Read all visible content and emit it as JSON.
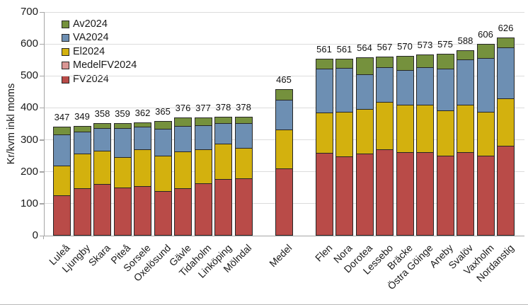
{
  "page": {
    "background": "#FFFFFF"
  },
  "chart_data": {
    "type": "bar",
    "stacked": true,
    "title": "",
    "xlabel": "",
    "ylabel": "Kr/kvm inkl moms",
    "ylim": [
      0,
      700
    ],
    "ytick_step": 100,
    "yticks": [
      0,
      100,
      200,
      300,
      400,
      500,
      600,
      700
    ],
    "grid": true,
    "legend_position": "top-left-inside",
    "legend": [
      "Av2024",
      "VA2024",
      "El2024",
      "MedelFV2024",
      "FV2024"
    ],
    "series_colors": {
      "Av2024": "#75913D",
      "VA2024": "#6D8FB3",
      "El2024": "#D3B10E",
      "MedelFV2024": "#D99694",
      "FV2024": "#B94B48"
    },
    "segment_border_color": "#262626",
    "stack_order_bottom_to_top": [
      "FV2024",
      "El2024",
      "VA2024",
      "Av2024"
    ],
    "bars": [
      {
        "label": "Luleå",
        "total": 347,
        "segments": [
          {
            "series": "FV2024",
            "value": 127
          },
          {
            "series": "El2024",
            "value": 95
          },
          {
            "series": "VA2024",
            "value": 100
          },
          {
            "series": "Av2024",
            "value": 25
          }
        ]
      },
      {
        "label": "Ljungby",
        "total": 349,
        "segments": [
          {
            "series": "FV2024",
            "value": 148
          },
          {
            "series": "El2024",
            "value": 112
          },
          {
            "series": "VA2024",
            "value": 71
          },
          {
            "series": "Av2024",
            "value": 18
          }
        ]
      },
      {
        "label": "Skara",
        "total": 358,
        "segments": [
          {
            "series": "FV2024",
            "value": 162
          },
          {
            "series": "El2024",
            "value": 106
          },
          {
            "series": "VA2024",
            "value": 74
          },
          {
            "series": "Av2024",
            "value": 16
          }
        ]
      },
      {
        "label": "Piteå",
        "total": 359,
        "segments": [
          {
            "series": "FV2024",
            "value": 151
          },
          {
            "series": "El2024",
            "value": 97
          },
          {
            "series": "VA2024",
            "value": 93
          },
          {
            "series": "Av2024",
            "value": 18
          }
        ]
      },
      {
        "label": "Sorsele",
        "total": 362,
        "segments": [
          {
            "series": "FV2024",
            "value": 155
          },
          {
            "series": "El2024",
            "value": 117
          },
          {
            "series": "VA2024",
            "value": 73
          },
          {
            "series": "Av2024",
            "value": 17
          }
        ]
      },
      {
        "label": "Oxelösund",
        "total": 365,
        "segments": [
          {
            "series": "FV2024",
            "value": 140
          },
          {
            "series": "El2024",
            "value": 112
          },
          {
            "series": "VA2024",
            "value": 87
          },
          {
            "series": "Av2024",
            "value": 26
          }
        ]
      },
      {
        "label": "Gävle",
        "total": 376,
        "segments": [
          {
            "series": "FV2024",
            "value": 148
          },
          {
            "series": "El2024",
            "value": 118
          },
          {
            "series": "VA2024",
            "value": 82
          },
          {
            "series": "Av2024",
            "value": 28
          }
        ]
      },
      {
        "label": "Tidaholm",
        "total": 377,
        "segments": [
          {
            "series": "FV2024",
            "value": 164
          },
          {
            "series": "El2024",
            "value": 108
          },
          {
            "series": "VA2024",
            "value": 78
          },
          {
            "series": "Av2024",
            "value": 27
          }
        ]
      },
      {
        "label": "Linköping",
        "total": 378,
        "segments": [
          {
            "series": "FV2024",
            "value": 177
          },
          {
            "series": "El2024",
            "value": 113
          },
          {
            "series": "VA2024",
            "value": 66
          },
          {
            "series": "Av2024",
            "value": 22
          }
        ]
      },
      {
        "label": "Mölndal",
        "total": 378,
        "segments": [
          {
            "series": "FV2024",
            "value": 179
          },
          {
            "series": "El2024",
            "value": 98
          },
          {
            "series": "VA2024",
            "value": 79
          },
          {
            "series": "Av2024",
            "value": 22
          }
        ]
      },
      {
        "spacer": true
      },
      {
        "label": "Medel",
        "total": 465,
        "segments": [
          {
            "series": "MedelFV2024",
            "value": 210,
            "color": "#B94B48"
          },
          {
            "series": "El2024",
            "value": 124
          },
          {
            "series": "VA2024",
            "value": 96
          },
          {
            "series": "Av2024",
            "value": 35
          }
        ]
      },
      {
        "spacer": true
      },
      {
        "label": "Flen",
        "total": 561,
        "segments": [
          {
            "series": "FV2024",
            "value": 259
          },
          {
            "series": "El2024",
            "value": 129
          },
          {
            "series": "VA2024",
            "value": 139
          },
          {
            "series": "Av2024",
            "value": 34
          }
        ]
      },
      {
        "label": "Nora",
        "total": 561,
        "segments": [
          {
            "series": "FV2024",
            "value": 248
          },
          {
            "series": "El2024",
            "value": 142
          },
          {
            "series": "VA2024",
            "value": 139
          },
          {
            "series": "Av2024",
            "value": 32
          }
        ]
      },
      {
        "label": "Dorotea",
        "total": 564,
        "segments": [
          {
            "series": "FV2024",
            "value": 257
          },
          {
            "series": "El2024",
            "value": 142
          },
          {
            "series": "VA2024",
            "value": 110
          },
          {
            "series": "Av2024",
            "value": 55
          }
        ]
      },
      {
        "label": "Lessebo",
        "total": 567,
        "segments": [
          {
            "series": "FV2024",
            "value": 270
          },
          {
            "series": "El2024",
            "value": 151
          },
          {
            "series": "VA2024",
            "value": 111
          },
          {
            "series": "Av2024",
            "value": 35
          }
        ]
      },
      {
        "label": "Bräcke",
        "total": 570,
        "segments": [
          {
            "series": "FV2024",
            "value": 261
          },
          {
            "series": "El2024",
            "value": 151
          },
          {
            "series": "VA2024",
            "value": 111
          },
          {
            "series": "Av2024",
            "value": 47
          }
        ]
      },
      {
        "label": "Östra Göinge",
        "total": 573,
        "segments": [
          {
            "series": "FV2024",
            "value": 261
          },
          {
            "series": "El2024",
            "value": 151
          },
          {
            "series": "VA2024",
            "value": 119
          },
          {
            "series": "Av2024",
            "value": 42
          }
        ]
      },
      {
        "label": "Aneby",
        "total": 575,
        "segments": [
          {
            "series": "FV2024",
            "value": 250
          },
          {
            "series": "El2024",
            "value": 144
          },
          {
            "series": "VA2024",
            "value": 133
          },
          {
            "series": "Av2024",
            "value": 48
          }
        ]
      },
      {
        "label": "Svalöv",
        "total": 588,
        "segments": [
          {
            "series": "FV2024",
            "value": 261
          },
          {
            "series": "El2024",
            "value": 151
          },
          {
            "series": "VA2024",
            "value": 144
          },
          {
            "series": "Av2024",
            "value": 32
          }
        ]
      },
      {
        "label": "Vaxholm",
        "total": 606,
        "segments": [
          {
            "series": "FV2024",
            "value": 250
          },
          {
            "series": "El2024",
            "value": 140
          },
          {
            "series": "VA2024",
            "value": 170
          },
          {
            "series": "Av2024",
            "value": 46
          }
        ]
      },
      {
        "label": "Nordanstig",
        "total": 626,
        "segments": [
          {
            "series": "FV2024",
            "value": 281
          },
          {
            "series": "El2024",
            "value": 151
          },
          {
            "series": "VA2024",
            "value": 162
          },
          {
            "series": "Av2024",
            "value": 32
          }
        ]
      }
    ]
  }
}
